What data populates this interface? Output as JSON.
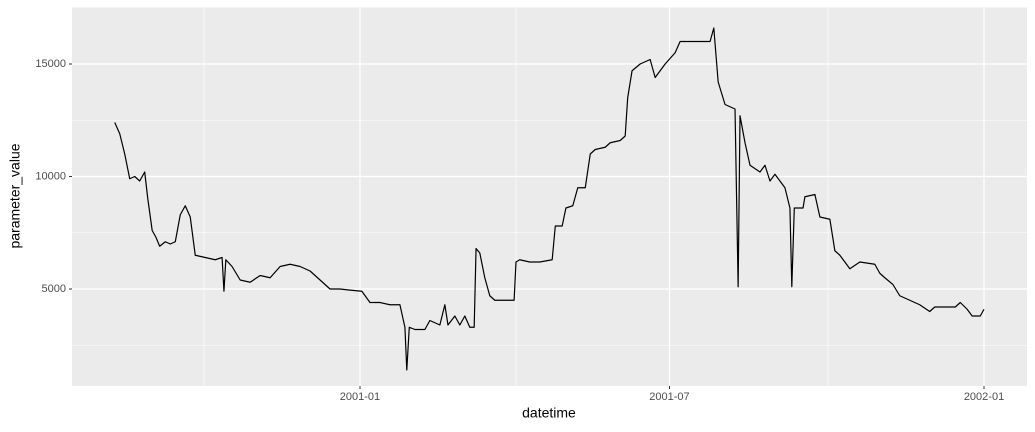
{
  "chart_data": {
    "type": "line",
    "x_label": "datetime",
    "y_label": "parameter_value",
    "color": "#000000",
    "grid": true,
    "xlim": [
      2000.5385,
      2002.0689
    ],
    "ylim": [
      689,
      17533
    ],
    "xticks": [
      {
        "value": 2001,
        "label": "2001-01"
      },
      {
        "value": 2001.496,
        "label": "2001-07"
      },
      {
        "value": 2002,
        "label": "2002-01"
      }
    ],
    "xminor": [
      2000.75,
      2001.25,
      2001.75
    ],
    "yticks": [
      5000,
      10000,
      15000
    ],
    "yminor": [
      2500,
      7500,
      12500,
      17500
    ],
    "x": [
      2000.607,
      2000.615,
      2000.623,
      2000.631,
      2000.639,
      2000.647,
      2000.655,
      2000.66,
      2000.667,
      2000.673,
      2000.679,
      2000.688,
      2000.696,
      2000.704,
      2000.712,
      2000.72,
      2000.728,
      2000.736,
      2000.752,
      2000.768,
      2000.779,
      2000.782,
      2000.785,
      2000.795,
      2000.808,
      2000.824,
      2000.84,
      2000.856,
      2000.872,
      2000.888,
      2000.904,
      2000.92,
      2000.928,
      2000.944,
      2000.952,
      2000.968,
      2000.984,
      2001.003,
      2001.016,
      2001.032,
      2001.048,
      2001.064,
      2001.072,
      2001.075,
      2001.079,
      2001.088,
      2001.104,
      2001.112,
      2001.128,
      2001.136,
      2001.141,
      2001.152,
      2001.16,
      2001.168,
      2001.176,
      2001.183,
      2001.186,
      2001.192,
      2001.2,
      2001.208,
      2001.216,
      2001.232,
      2001.247,
      2001.25,
      2001.256,
      2001.272,
      2001.288,
      2001.308,
      2001.313,
      2001.324,
      2001.33,
      2001.341,
      2001.349,
      2001.361,
      2001.369,
      2001.377,
      2001.393,
      2001.401,
      2001.417,
      2001.425,
      2001.429,
      2001.436,
      2001.449,
      2001.465,
      2001.473,
      2001.489,
      2001.505,
      2001.513,
      2001.529,
      2001.545,
      2001.561,
      2001.567,
      2001.574,
      2001.585,
      2001.601,
      2001.606,
      2001.609,
      2001.617,
      2001.625,
      2001.641,
      2001.649,
      2001.657,
      2001.665,
      2001.673,
      2001.681,
      2001.689,
      2001.692,
      2001.696,
      2001.71,
      2001.713,
      2001.729,
      2001.737,
      2001.753,
      2001.761,
      2001.769,
      2001.785,
      2001.801,
      2001.825,
      2001.833,
      2001.841,
      2001.854,
      2001.865,
      2001.881,
      2001.897,
      2001.913,
      2001.921,
      2001.938,
      2001.954,
      2001.962,
      2001.973,
      2001.981,
      2001.994,
      2002.0
    ],
    "values": [
      12400,
      11900,
      11000,
      9900,
      10000,
      9800,
      10200,
      9000,
      7600,
      7300,
      6900,
      7100,
      7000,
      7100,
      8300,
      8700,
      8200,
      6500,
      6400,
      6300,
      6400,
      4900,
      6300,
      6000,
      5400,
      5300,
      5600,
      5500,
      6000,
      6100,
      6000,
      5800,
      5600,
      5200,
      5000,
      5000,
      4950,
      4900,
      4400,
      4400,
      4300,
      4300,
      3300,
      1400,
      3300,
      3200,
      3200,
      3600,
      3400,
      4300,
      3400,
      3800,
      3400,
      3800,
      3300,
      3300,
      6800,
      6600,
      5500,
      4700,
      4500,
      4500,
      4500,
      6200,
      6300,
      6200,
      6200,
      6300,
      7800,
      7800,
      8600,
      8700,
      9500,
      9500,
      11000,
      11200,
      11300,
      11500,
      11600,
      11800,
      13500,
      14700,
      15000,
      15200,
      14400,
      15000,
      15500,
      16000,
      16000,
      16000,
      16000,
      16600,
      14200,
      13200,
      13000,
      5100,
      12700,
      11500,
      10500,
      10200,
      10500,
      9800,
      10100,
      9800,
      9500,
      8600,
      5100,
      8600,
      8600,
      9100,
      9200,
      8200,
      8100,
      6700,
      6500,
      5900,
      6200,
      6100,
      5700,
      5500,
      5200,
      4700,
      4500,
      4300,
      4000,
      4200,
      4200,
      4200,
      4400,
      4100,
      3800,
      3800,
      4100
    ]
  }
}
